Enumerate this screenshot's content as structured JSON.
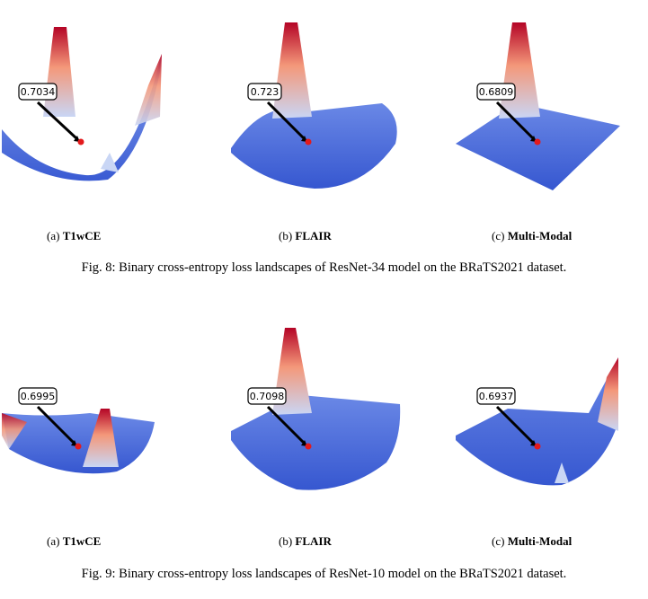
{
  "figures": [
    {
      "caption": "Fig. 8: Binary cross-entropy loss landscapes of ResNet-34 model on the BRaTS2021 dataset.",
      "panels": [
        {
          "prefix": "(a)",
          "name": "T1wCE",
          "value": "0.7034",
          "spikes": [
            "left-peak",
            "right-peak",
            "small-bump"
          ]
        },
        {
          "prefix": "(b)",
          "name": "FLAIR",
          "value": "0.723",
          "spikes": [
            "center-peak"
          ]
        },
        {
          "prefix": "(c)",
          "name": "Multi-Modal",
          "value": "0.6809",
          "spikes": [
            "center-peak"
          ]
        }
      ]
    },
    {
      "caption": "Fig. 9: Binary cross-entropy loss landscapes of ResNet-10 model on the BRaTS2021 dataset.",
      "panels": [
        {
          "prefix": "(a)",
          "name": "T1wCE",
          "value": "0.6995",
          "spikes": [
            "left-peak",
            "center-peak"
          ]
        },
        {
          "prefix": "(b)",
          "name": "FLAIR",
          "value": "0.7098",
          "spikes": [
            "center-peak"
          ]
        },
        {
          "prefix": "(c)",
          "name": "Multi-Modal",
          "value": "0.6937",
          "spikes": [
            "right-peak",
            "small-bump"
          ]
        }
      ]
    }
  ],
  "colors": {
    "surface": "#3f63d9",
    "surface_light": "#7f9bea",
    "peak_red": "#b40426",
    "peak_pink": "#f4987a",
    "marker": "#e31a1c"
  }
}
